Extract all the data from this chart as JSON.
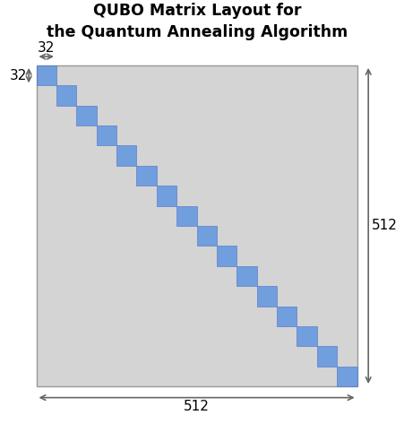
{
  "title_line1": "QUBO Matrix Layout for",
  "title_line2": "the Quantum Annealing Algorithm",
  "matrix_size": 512,
  "block_size": 32,
  "num_blocks": 16,
  "matrix_bg_color": "#d4d4d4",
  "block_color": "#6699dd",
  "block_edge_color": "#5577cc",
  "title_fontsize": 12.5,
  "annotation_fontsize": 11,
  "arrow_color": "#666666",
  "matrix_edge_color": "#999999"
}
